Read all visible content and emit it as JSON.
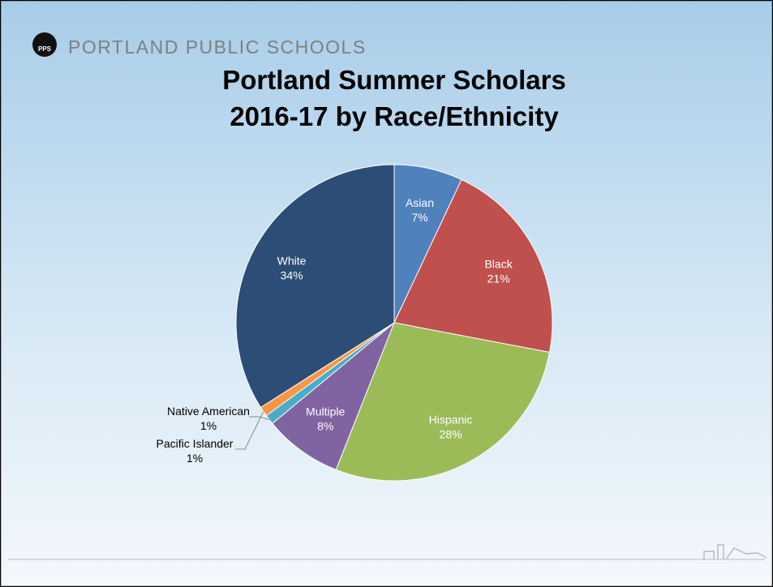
{
  "header": {
    "organization": "PORTLAND PUBLIC SCHOOLS",
    "logo_text": "PPS"
  },
  "chart_data": {
    "type": "pie",
    "title": [
      "Portland Summer Scholars",
      "2016-17 by Race/Ethnicity"
    ],
    "categories": [
      "Asian",
      "Black",
      "Hispanic",
      "Multiple",
      "Native American",
      "Pacific Islander",
      "White"
    ],
    "values": [
      7,
      21,
      28,
      8,
      1,
      1,
      34
    ],
    "value_labels": [
      "7%",
      "21%",
      "28%",
      "8%",
      "1%",
      "1%",
      "34%"
    ],
    "colors": [
      "#4f81bd",
      "#c0504d",
      "#9bbb59",
      "#8064a2",
      "#4bacc6",
      "#f79646",
      "#2c4d75"
    ]
  }
}
